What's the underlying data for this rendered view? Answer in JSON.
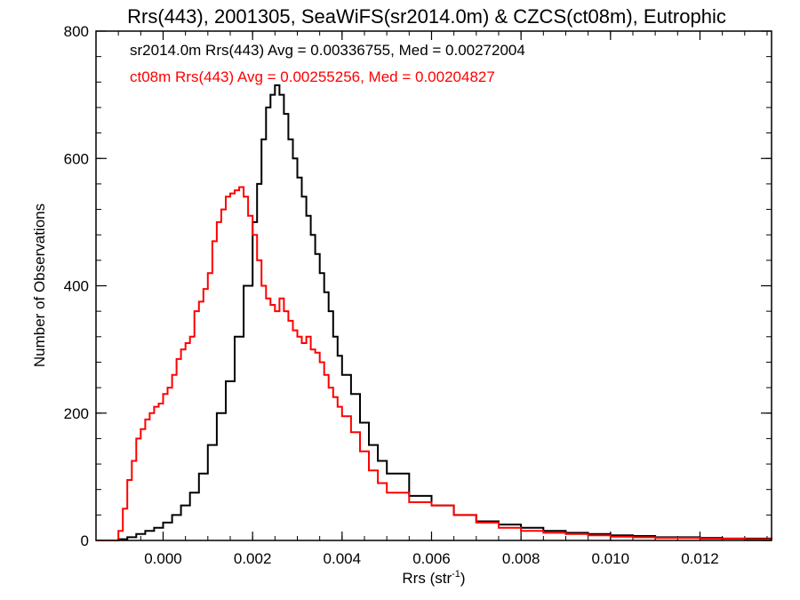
{
  "chart_data": {
    "type": "line",
    "title": "Rrs(443), 2001305, SeaWiFS(sr2014.0m) & CZCS(ct08m), Eutrophic",
    "xlabel_main": "Rrs (str",
    "xlabel_sup": "-1",
    "xlabel_tail": ")",
    "ylabel": "Number of Observations",
    "xlim": [
      -0.0015,
      0.0136
    ],
    "ylim": [
      0,
      800
    ],
    "x_ticks": [
      0.0,
      0.002,
      0.004,
      0.006,
      0.008,
      0.01,
      0.012
    ],
    "x_tick_labels": [
      "0.000",
      "0.002",
      "0.004",
      "0.006",
      "0.008",
      "0.010",
      "0.012"
    ],
    "y_ticks": [
      0,
      200,
      400,
      600,
      800
    ],
    "y_tick_labels": [
      "0",
      "200",
      "400",
      "600",
      "800"
    ],
    "grid": false,
    "annotations": [
      {
        "text": "sr2014.0m Rrs(443) Avg = 0.00336755, Med = 0.00272004",
        "color": "#000000"
      },
      {
        "text": "ct08m Rrs(443) Avg = 0.00255256, Med = 0.00204827",
        "color": "#ff0000"
      }
    ],
    "series": [
      {
        "color": "#000000",
        "points": [
          [
            -0.0015,
            0
          ],
          [
            -0.0012,
            0
          ],
          [
            -0.001,
            2
          ],
          [
            -0.0008,
            5
          ],
          [
            -0.0006,
            10
          ],
          [
            -0.0004,
            15
          ],
          [
            -0.0002,
            20
          ],
          [
            0.0,
            28
          ],
          [
            0.0002,
            40
          ],
          [
            0.0004,
            55
          ],
          [
            0.0006,
            75
          ],
          [
            0.0008,
            105
          ],
          [
            0.001,
            150
          ],
          [
            0.0012,
            200
          ],
          [
            0.0014,
            250
          ],
          [
            0.0016,
            320
          ],
          [
            0.0018,
            400
          ],
          [
            0.002,
            500
          ],
          [
            0.0021,
            560
          ],
          [
            0.0022,
            630
          ],
          [
            0.0023,
            680
          ],
          [
            0.0024,
            700
          ],
          [
            0.0025,
            715
          ],
          [
            0.0026,
            700
          ],
          [
            0.0027,
            670
          ],
          [
            0.0028,
            630
          ],
          [
            0.0029,
            600
          ],
          [
            0.003,
            570
          ],
          [
            0.0031,
            540
          ],
          [
            0.0032,
            510
          ],
          [
            0.0033,
            480
          ],
          [
            0.0034,
            450
          ],
          [
            0.0035,
            420
          ],
          [
            0.0036,
            390
          ],
          [
            0.0037,
            360
          ],
          [
            0.0038,
            320
          ],
          [
            0.0039,
            290
          ],
          [
            0.004,
            260
          ],
          [
            0.0042,
            230
          ],
          [
            0.0044,
            185
          ],
          [
            0.0046,
            150
          ],
          [
            0.0048,
            125
          ],
          [
            0.005,
            105
          ],
          [
            0.0055,
            70
          ],
          [
            0.006,
            55
          ],
          [
            0.0065,
            40
          ],
          [
            0.007,
            30
          ],
          [
            0.0075,
            25
          ],
          [
            0.008,
            20
          ],
          [
            0.0085,
            15
          ],
          [
            0.009,
            12
          ],
          [
            0.0095,
            10
          ],
          [
            0.01,
            8
          ],
          [
            0.0105,
            7
          ],
          [
            0.011,
            5
          ],
          [
            0.0115,
            5
          ],
          [
            0.012,
            4
          ],
          [
            0.0125,
            3
          ],
          [
            0.013,
            3
          ],
          [
            0.0136,
            2
          ]
        ]
      },
      {
        "color": "#ff0000",
        "points": [
          [
            -0.0015,
            0
          ],
          [
            -0.0012,
            0
          ],
          [
            -0.001,
            15
          ],
          [
            -0.0009,
            50
          ],
          [
            -0.0008,
            95
          ],
          [
            -0.0007,
            125
          ],
          [
            -0.0006,
            160
          ],
          [
            -0.0005,
            175
          ],
          [
            -0.0004,
            190
          ],
          [
            -0.0003,
            200
          ],
          [
            -0.0002,
            210
          ],
          [
            -0.0001,
            215
          ],
          [
            0.0,
            230
          ],
          [
            0.0001,
            240
          ],
          [
            0.0002,
            260
          ],
          [
            0.0003,
            285
          ],
          [
            0.0004,
            300
          ],
          [
            0.0005,
            310
          ],
          [
            0.0006,
            320
          ],
          [
            0.0007,
            360
          ],
          [
            0.0008,
            375
          ],
          [
            0.0009,
            395
          ],
          [
            0.001,
            420
          ],
          [
            0.0011,
            470
          ],
          [
            0.0012,
            500
          ],
          [
            0.0013,
            520
          ],
          [
            0.0014,
            540
          ],
          [
            0.0015,
            545
          ],
          [
            0.0016,
            550
          ],
          [
            0.0017,
            555
          ],
          [
            0.0018,
            540
          ],
          [
            0.0019,
            510
          ],
          [
            0.002,
            480
          ],
          [
            0.0021,
            440
          ],
          [
            0.0022,
            400
          ],
          [
            0.0023,
            380
          ],
          [
            0.0024,
            370
          ],
          [
            0.0025,
            360
          ],
          [
            0.0026,
            380
          ],
          [
            0.0027,
            360
          ],
          [
            0.0028,
            345
          ],
          [
            0.0029,
            330
          ],
          [
            0.003,
            320
          ],
          [
            0.0031,
            310
          ],
          [
            0.0032,
            320
          ],
          [
            0.0033,
            300
          ],
          [
            0.0034,
            295
          ],
          [
            0.0035,
            280
          ],
          [
            0.0036,
            260
          ],
          [
            0.0037,
            240
          ],
          [
            0.0038,
            225
          ],
          [
            0.0039,
            210
          ],
          [
            0.004,
            195
          ],
          [
            0.0042,
            170
          ],
          [
            0.0044,
            140
          ],
          [
            0.0046,
            110
          ],
          [
            0.0048,
            90
          ],
          [
            0.005,
            75
          ],
          [
            0.0055,
            60
          ],
          [
            0.006,
            55
          ],
          [
            0.0065,
            40
          ],
          [
            0.007,
            28
          ],
          [
            0.0075,
            20
          ],
          [
            0.008,
            15
          ],
          [
            0.0085,
            12
          ],
          [
            0.009,
            10
          ],
          [
            0.0095,
            8
          ],
          [
            0.01,
            6
          ],
          [
            0.0105,
            5
          ],
          [
            0.011,
            4
          ],
          [
            0.0115,
            4
          ],
          [
            0.012,
            3
          ],
          [
            0.0125,
            3
          ],
          [
            0.013,
            2
          ],
          [
            0.0136,
            2
          ]
        ]
      }
    ]
  }
}
